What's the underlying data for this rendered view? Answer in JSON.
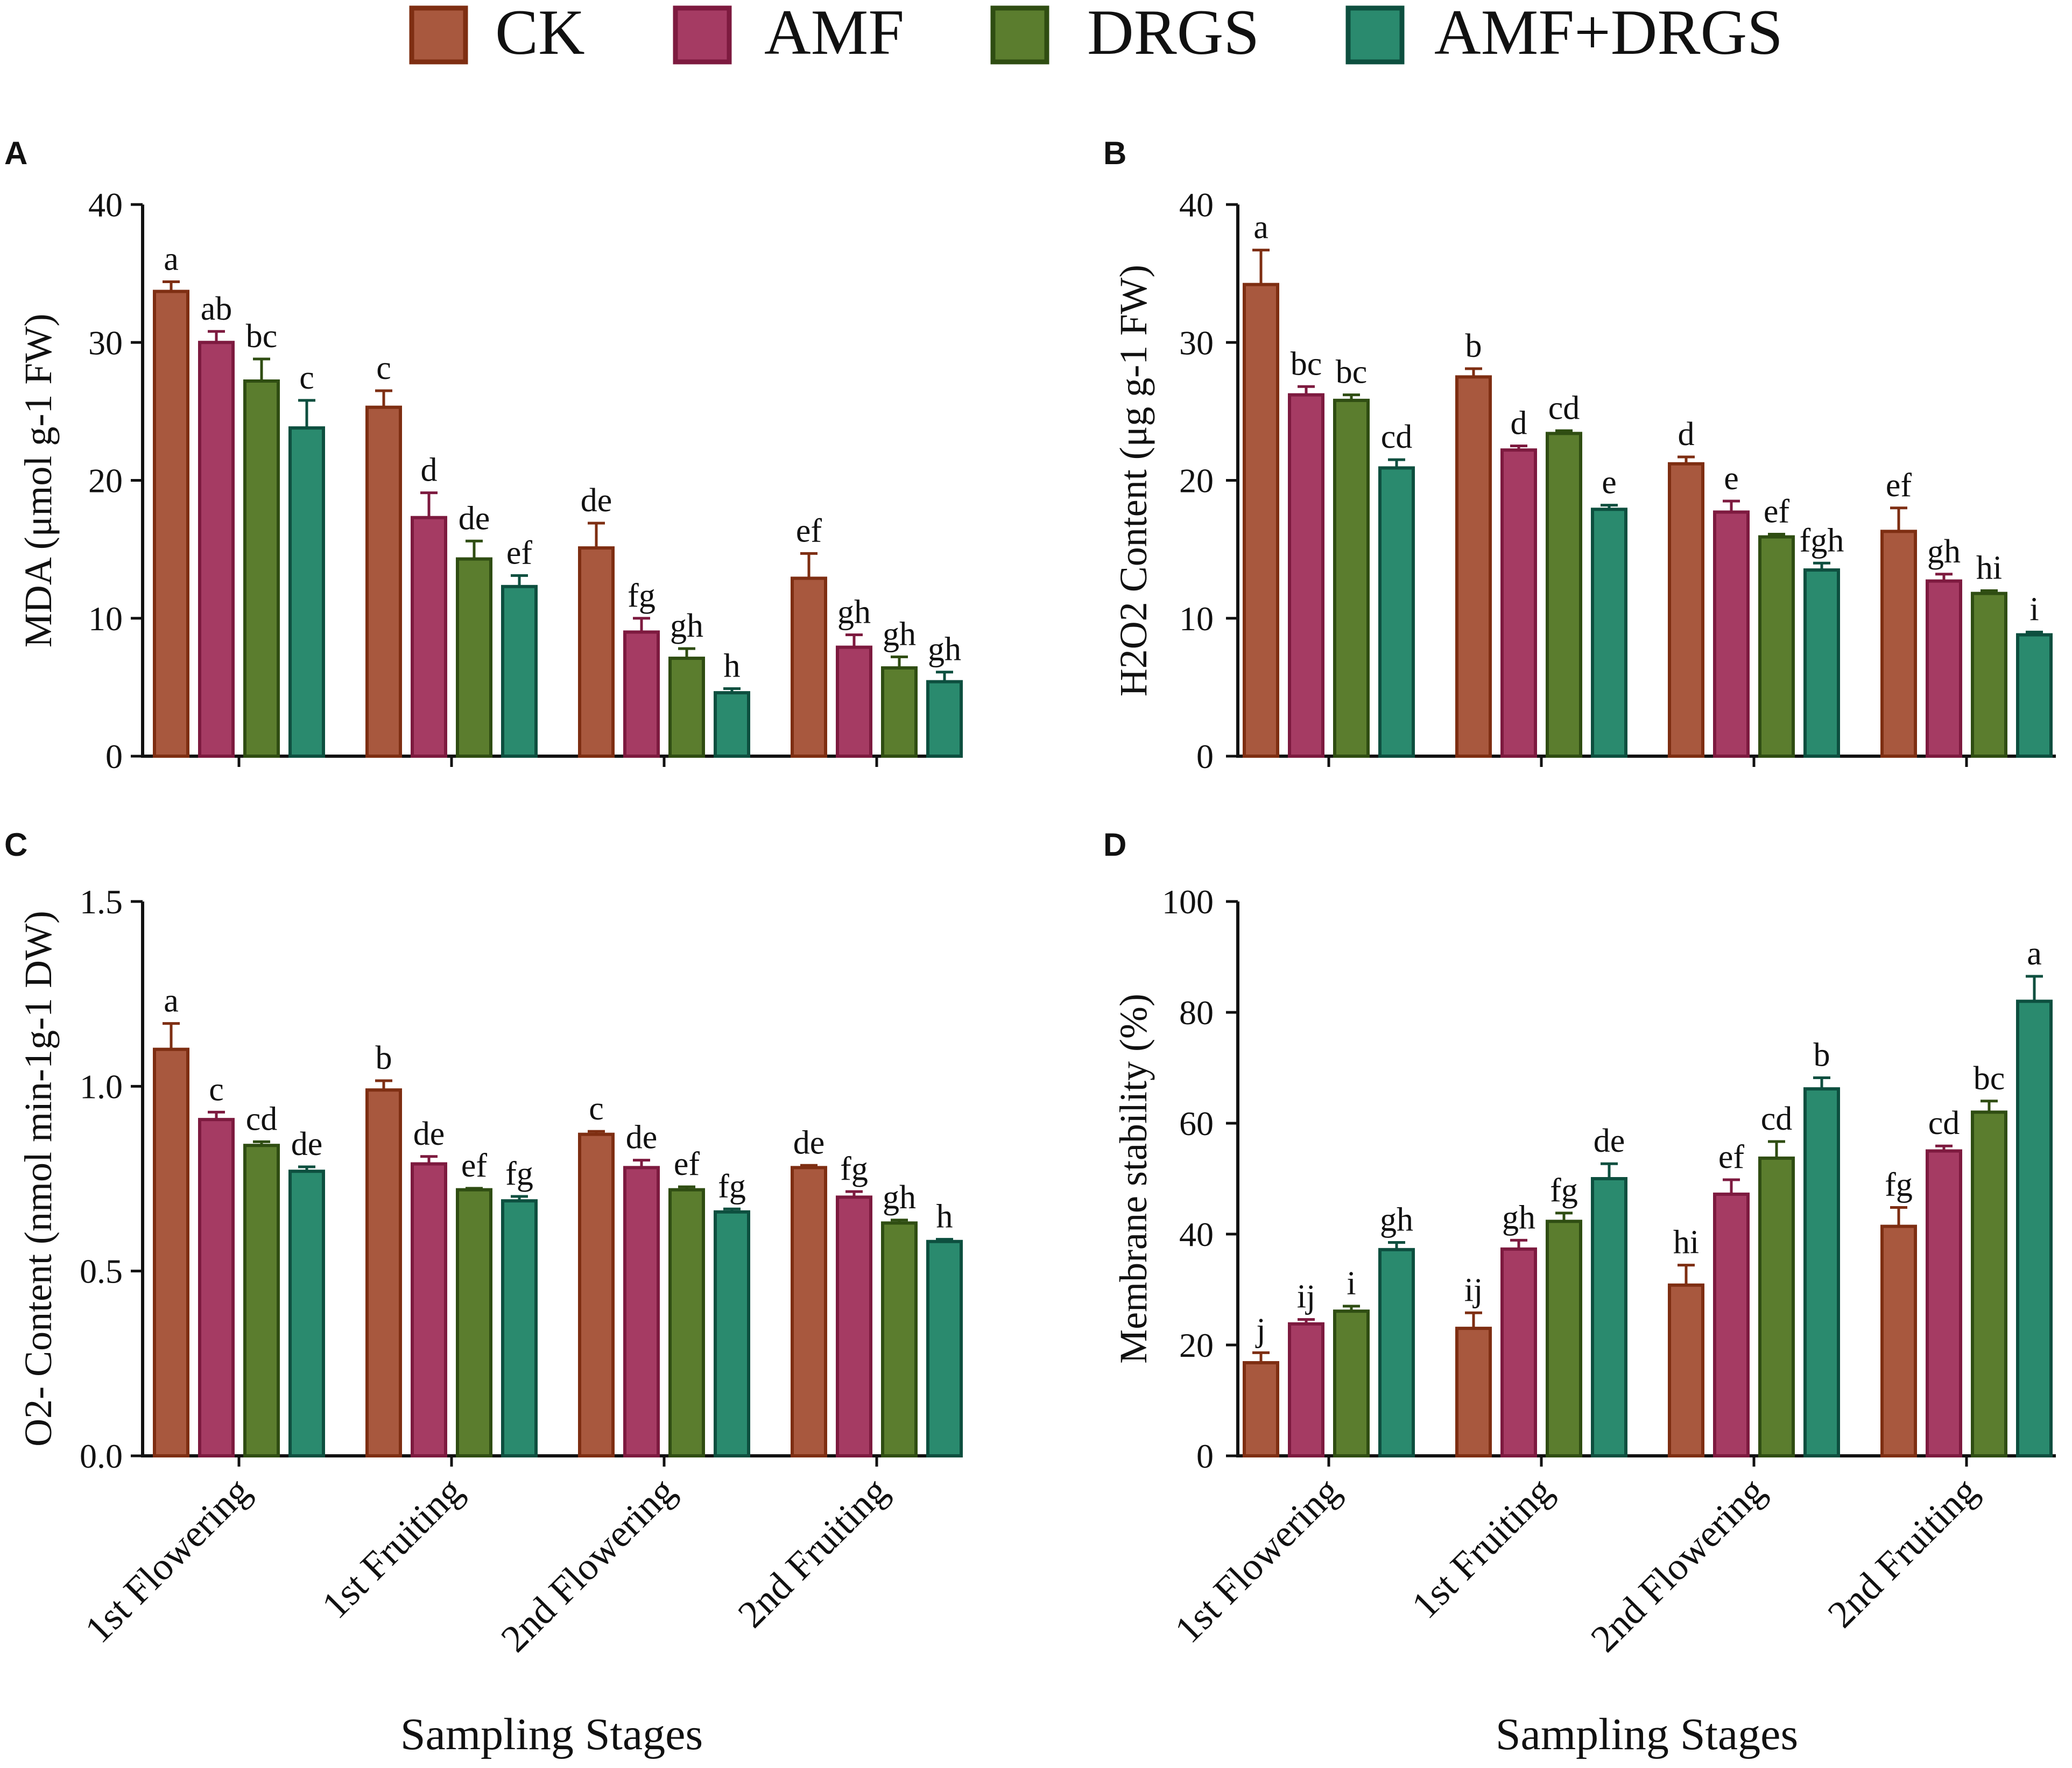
{
  "legend": [
    {
      "name": "CK",
      "color": "#a8583e",
      "stroke": "#7e2e12"
    },
    {
      "name": "AMF",
      "color": "#a53b63",
      "stroke": "#7d1a3f"
    },
    {
      "name": "DRGS",
      "color": "#5b7d2e",
      "stroke": "#2f4d12"
    },
    {
      "name": "AMF+DRGS",
      "color": "#2a8a6e",
      "stroke": "#0d4f3f"
    }
  ],
  "x_title": "Sampling Stages",
  "chart_data": [
    {
      "panel": "A",
      "type": "bar",
      "ylabel": "MDA (μmol g-1 FW)",
      "ylim": [
        0,
        40
      ],
      "yticks": [
        "0",
        "10",
        "20",
        "30",
        "40"
      ],
      "categories": [
        "1st Flowering",
        "1st Fruiting",
        "2nd Flowering",
        "2nd Fruiting"
      ],
      "series": [
        {
          "name": "CK",
          "values": [
            33.7,
            25.3,
            15.1,
            12.9
          ],
          "errors": [
            0.7,
            1.2,
            1.8,
            1.8
          ],
          "letters": [
            "a",
            "c",
            "de",
            "ef"
          ]
        },
        {
          "name": "AMF",
          "values": [
            30.0,
            17.3,
            9.0,
            7.9
          ],
          "errors": [
            0.8,
            1.8,
            1.0,
            0.9
          ],
          "letters": [
            "ab",
            "d",
            "fg",
            "gh"
          ]
        },
        {
          "name": "DRGS",
          "values": [
            27.2,
            14.3,
            7.1,
            6.4
          ],
          "errors": [
            1.6,
            1.3,
            0.7,
            0.8
          ],
          "letters": [
            "bc",
            "de",
            "gh",
            "gh"
          ]
        },
        {
          "name": "AMF+DRGS",
          "values": [
            23.8,
            12.3,
            4.6,
            5.4
          ],
          "errors": [
            2.0,
            0.8,
            0.3,
            0.7
          ],
          "letters": [
            "c",
            "ef",
            "h",
            "gh"
          ]
        }
      ]
    },
    {
      "panel": "B",
      "type": "bar",
      "ylabel": "H2O2 Content (μg g-1 FW)",
      "ylim": [
        0,
        40
      ],
      "yticks": [
        "0",
        "10",
        "20",
        "30",
        "40"
      ],
      "categories": [
        "1st Flowering",
        "1st Fruiting",
        "2nd Flowering",
        "2nd Fruiting"
      ],
      "series": [
        {
          "name": "CK",
          "values": [
            34.2,
            27.5,
            21.2,
            16.3
          ],
          "errors": [
            2.5,
            0.6,
            0.5,
            1.7
          ],
          "letters": [
            "a",
            "b",
            "d",
            "ef"
          ]
        },
        {
          "name": "AMF",
          "values": [
            26.2,
            22.2,
            17.7,
            12.7
          ],
          "errors": [
            0.6,
            0.3,
            0.8,
            0.5
          ],
          "letters": [
            "bc",
            "d",
            "e",
            "gh"
          ]
        },
        {
          "name": "DRGS",
          "values": [
            25.8,
            23.4,
            15.9,
            11.8
          ],
          "errors": [
            0.4,
            0.2,
            0.2,
            0.2
          ],
          "letters": [
            "bc",
            "cd",
            "ef",
            "hi"
          ]
        },
        {
          "name": "AMF+DRGS",
          "values": [
            20.9,
            17.9,
            13.5,
            8.8
          ],
          "errors": [
            0.6,
            0.3,
            0.5,
            0.2
          ],
          "letters": [
            "cd",
            "e",
            "fgh",
            "i"
          ]
        }
      ]
    },
    {
      "panel": "C",
      "type": "bar",
      "ylabel": "O2- Content (nmol min-1g-1 DW)",
      "ylim": [
        0,
        1.5
      ],
      "yticks": [
        "0.0",
        "0.5",
        "1.0",
        "1.5"
      ],
      "categories": [
        "1st Flowering",
        "1st Fruiting",
        "2nd Flowering",
        "2nd Fruiting"
      ],
      "series": [
        {
          "name": "CK",
          "values": [
            1.1,
            0.99,
            0.87,
            0.78
          ],
          "errors": [
            0.07,
            0.025,
            0.008,
            0.006
          ],
          "letters": [
            "a",
            "b",
            "c",
            "de"
          ]
        },
        {
          "name": "AMF",
          "values": [
            0.91,
            0.79,
            0.78,
            0.7
          ],
          "errors": [
            0.02,
            0.02,
            0.02,
            0.015
          ],
          "letters": [
            "c",
            "de",
            "de",
            "fg"
          ]
        },
        {
          "name": "DRGS",
          "values": [
            0.84,
            0.72,
            0.72,
            0.63
          ],
          "errors": [
            0.01,
            0.004,
            0.008,
            0.008
          ],
          "letters": [
            "cd",
            "ef",
            "ef",
            "gh"
          ]
        },
        {
          "name": "AMF+DRGS",
          "values": [
            0.77,
            0.69,
            0.66,
            0.58
          ],
          "errors": [
            0.012,
            0.012,
            0.008,
            0.006
          ],
          "letters": [
            "de",
            "fg",
            "fg",
            "h"
          ]
        }
      ]
    },
    {
      "panel": "D",
      "type": "bar",
      "ylabel": "Membrane stability (%)",
      "ylim": [
        0,
        100
      ],
      "yticks": [
        "0",
        "20",
        "40",
        "60",
        "80",
        "100"
      ],
      "categories": [
        "1st Flowering",
        "1st Fruiting",
        "2nd Flowering",
        "2nd Fruiting"
      ],
      "series": [
        {
          "name": "CK",
          "values": [
            16.8,
            23.0,
            30.8,
            41.4
          ],
          "errors": [
            1.8,
            2.8,
            3.6,
            3.4
          ],
          "letters": [
            "j",
            "ij",
            "hi",
            "fg"
          ]
        },
        {
          "name": "AMF",
          "values": [
            23.8,
            37.3,
            47.2,
            55.0
          ],
          "errors": [
            0.8,
            1.6,
            2.6,
            0.9
          ],
          "letters": [
            "ij",
            "gh",
            "ef",
            "cd"
          ]
        },
        {
          "name": "DRGS",
          "values": [
            26.1,
            42.3,
            53.7,
            62.0
          ],
          "errors": [
            0.9,
            1.5,
            3.0,
            2.0
          ],
          "letters": [
            "i",
            "fg",
            "cd",
            "bc"
          ]
        },
        {
          "name": "AMF+DRGS",
          "values": [
            37.2,
            50.0,
            66.2,
            82.0
          ],
          "errors": [
            1.3,
            2.7,
            2.0,
            4.5
          ],
          "letters": [
            "gh",
            "de",
            "b",
            "a"
          ]
        }
      ]
    }
  ]
}
